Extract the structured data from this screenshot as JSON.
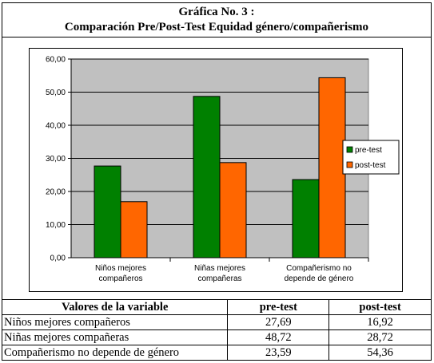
{
  "title": {
    "line1": "Gráfica No. 3 :",
    "line2": "Comparación Pre/Post-Test Equidad género/compañerismo"
  },
  "chart_data": {
    "type": "bar",
    "categories": [
      [
        "Niños mejores",
        "compañeros"
      ],
      [
        "Niñas mejores",
        "compañeras"
      ],
      [
        "Compañerismo no",
        "depende de género"
      ]
    ],
    "series": [
      {
        "name": "pre-test",
        "color": "#008000",
        "values": [
          27.69,
          48.72,
          23.59
        ]
      },
      {
        "name": "post-test",
        "color": "#FF6600",
        "values": [
          16.92,
          28.72,
          54.36
        ]
      }
    ],
    "ylim": [
      0,
      60
    ],
    "yticks": [
      "0,00",
      "10,00",
      "20,00",
      "30,00",
      "40,00",
      "50,00",
      "60,00"
    ],
    "plot_background": "#C0C0C0",
    "grid": true,
    "legend_position": "right"
  },
  "table": {
    "headers": [
      "Valores de la variable",
      "pre-test",
      "post-test"
    ],
    "rows": [
      [
        "Niños mejores compañeros",
        "27,69",
        "16,92"
      ],
      [
        "Niñas mejores compañeras",
        "48,72",
        "28,72"
      ],
      [
        "Compañerismo no depende de género",
        "23,59",
        "54,36"
      ]
    ]
  }
}
